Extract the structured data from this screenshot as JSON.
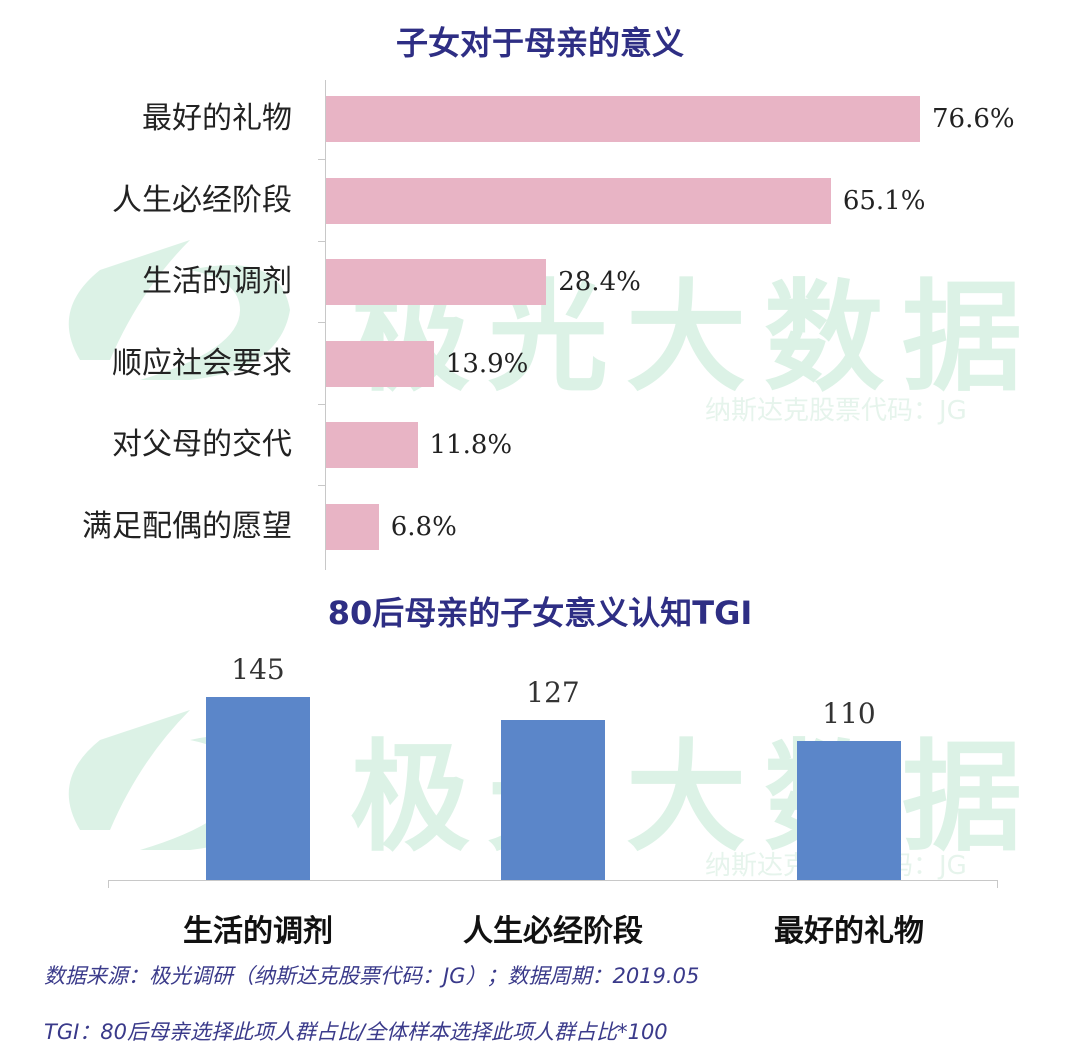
{
  "watermark": {
    "text": "极光大数据",
    "sub": "纳斯达克股票代码：JG"
  },
  "chart_data": [
    {
      "type": "bar",
      "orientation": "horizontal",
      "title": "子女对于母亲的意义",
      "categories": [
        "最好的礼物",
        "人生必经阶段",
        "生活的调剂",
        "顺应社会要求",
        "对父母的交代",
        "满足配偶的愿望"
      ],
      "values": [
        76.6,
        65.1,
        28.4,
        13.9,
        11.8,
        6.8
      ],
      "labels": [
        "76.6%",
        "65.1%",
        "28.4%",
        "13.9%",
        "11.8%",
        "6.8%"
      ],
      "unit": "%",
      "xlim": [
        0,
        76.6
      ],
      "color": "#e8b4c5"
    },
    {
      "type": "bar",
      "orientation": "vertical",
      "title": "80后母亲的子女意义认知TGI",
      "categories": [
        "生活的调剂",
        "人生必经阶段",
        "最好的礼物"
      ],
      "values": [
        145,
        127,
        110
      ],
      "ylim": [
        0,
        145
      ],
      "color": "#5b86c9"
    }
  ],
  "footnotes": {
    "source": "数据来源：极光调研（纳斯达克股票代码：JG）；数据周期：2019.05",
    "tgi": "TGI：80后母亲选择此项人群占比/全体样本选择此项人群占比*100"
  }
}
